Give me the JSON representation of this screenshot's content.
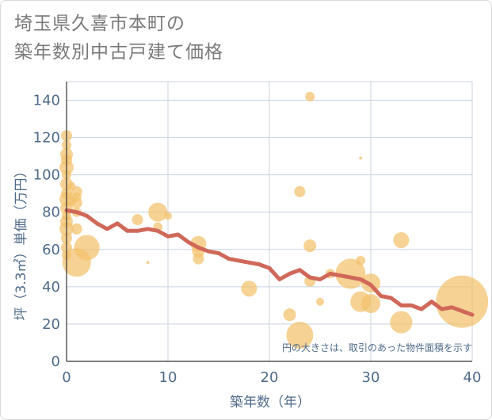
{
  "title": {
    "line1": "埼玉県久喜市本町の",
    "line2": "築年数別中古戸建て価格"
  },
  "chart_data": {
    "type": "scatter",
    "xlabel": "築年数（年）",
    "ylabel": "坪（3.3㎡）単価（万円）",
    "xlim": [
      0,
      40
    ],
    "ylim": [
      0,
      150
    ],
    "xticks": [
      "0",
      "10",
      "20",
      "30",
      "40"
    ],
    "yticks": [
      "0",
      "20",
      "40",
      "60",
      "80",
      "100",
      "120",
      "140"
    ],
    "grid": true,
    "note": "円の大きさは、取引のあった物件面積を示す",
    "colors": {
      "bubble": "#f2c06b",
      "line": "#d0685a",
      "grid": "#c9d3df",
      "text": "#4f6b8a"
    },
    "bubbles": [
      {
        "x": 0,
        "y": 121,
        "r": 7
      },
      {
        "x": 0,
        "y": 116,
        "r": 6
      },
      {
        "x": 0,
        "y": 111,
        "r": 8
      },
      {
        "x": 0,
        "y": 108,
        "r": 7
      },
      {
        "x": 0,
        "y": 104,
        "r": 9
      },
      {
        "x": 0,
        "y": 100,
        "r": 6
      },
      {
        "x": 0,
        "y": 95,
        "r": 8
      },
      {
        "x": 0,
        "y": 90,
        "r": 7
      },
      {
        "x": 0,
        "y": 87,
        "r": 9
      },
      {
        "x": 0,
        "y": 82,
        "r": 8
      },
      {
        "x": 0,
        "y": 78,
        "r": 6
      },
      {
        "x": 0,
        "y": 75,
        "r": 8
      },
      {
        "x": 0,
        "y": 71,
        "r": 9
      },
      {
        "x": 0,
        "y": 66,
        "r": 7
      },
      {
        "x": 0,
        "y": 61,
        "r": 7
      },
      {
        "x": 0,
        "y": 57,
        "r": 6
      },
      {
        "x": 0.5,
        "y": 94,
        "r": 5
      },
      {
        "x": 0.5,
        "y": 86,
        "r": 6
      },
      {
        "x": 1,
        "y": 91,
        "r": 7
      },
      {
        "x": 1,
        "y": 88,
        "r": 6
      },
      {
        "x": 1,
        "y": 85,
        "r": 7
      },
      {
        "x": 1,
        "y": 80,
        "r": 6
      },
      {
        "x": 1,
        "y": 71,
        "r": 7
      },
      {
        "x": 1,
        "y": 53,
        "r": 18
      },
      {
        "x": 2,
        "y": 61,
        "r": 16
      },
      {
        "x": 7,
        "y": 76,
        "r": 7
      },
      {
        "x": 8,
        "y": 53,
        "r": 2
      },
      {
        "x": 9,
        "y": 80,
        "r": 12
      },
      {
        "x": 9,
        "y": 72,
        "r": 6
      },
      {
        "x": 10,
        "y": 78,
        "r": 5
      },
      {
        "x": 13,
        "y": 63,
        "r": 10
      },
      {
        "x": 13,
        "y": 59,
        "r": 8
      },
      {
        "x": 13,
        "y": 55,
        "r": 7
      },
      {
        "x": 18,
        "y": 39,
        "r": 10
      },
      {
        "x": 22,
        "y": 25,
        "r": 8
      },
      {
        "x": 23,
        "y": 14,
        "r": 17
      },
      {
        "x": 23,
        "y": 91,
        "r": 7
      },
      {
        "x": 24,
        "y": 142,
        "r": 6
      },
      {
        "x": 24,
        "y": 62,
        "r": 8
      },
      {
        "x": 24,
        "y": 43,
        "r": 7
      },
      {
        "x": 25,
        "y": 32,
        "r": 5
      },
      {
        "x": 26,
        "y": 47,
        "r": 6
      },
      {
        "x": 28,
        "y": 47,
        "r": 19
      },
      {
        "x": 29,
        "y": 109,
        "r": 2
      },
      {
        "x": 29,
        "y": 54,
        "r": 6
      },
      {
        "x": 29,
        "y": 32,
        "r": 13
      },
      {
        "x": 30,
        "y": 42,
        "r": 12
      },
      {
        "x": 30,
        "y": 31,
        "r": 12
      },
      {
        "x": 33,
        "y": 65,
        "r": 10
      },
      {
        "x": 33,
        "y": 21,
        "r": 14
      },
      {
        "x": 39,
        "y": 32,
        "r": 33
      }
    ],
    "trend": {
      "x": [
        0,
        1,
        2,
        3,
        4,
        5,
        6,
        7,
        8,
        9,
        10,
        11,
        12,
        13,
        14,
        15,
        16,
        17,
        18,
        19,
        20,
        21,
        22,
        23,
        24,
        25,
        26,
        27,
        28,
        29,
        30,
        31,
        32,
        33,
        34,
        35,
        36,
        37,
        38,
        39,
        40
      ],
      "y": [
        81,
        80,
        78,
        74,
        71,
        74,
        70,
        70,
        71,
        70,
        67,
        68,
        64,
        61,
        59,
        58,
        55,
        54,
        53,
        52,
        50,
        44,
        47,
        49,
        45,
        44,
        47,
        46,
        45,
        44,
        41,
        35,
        34,
        30,
        30,
        28,
        32,
        28,
        29,
        27,
        25
      ]
    }
  }
}
